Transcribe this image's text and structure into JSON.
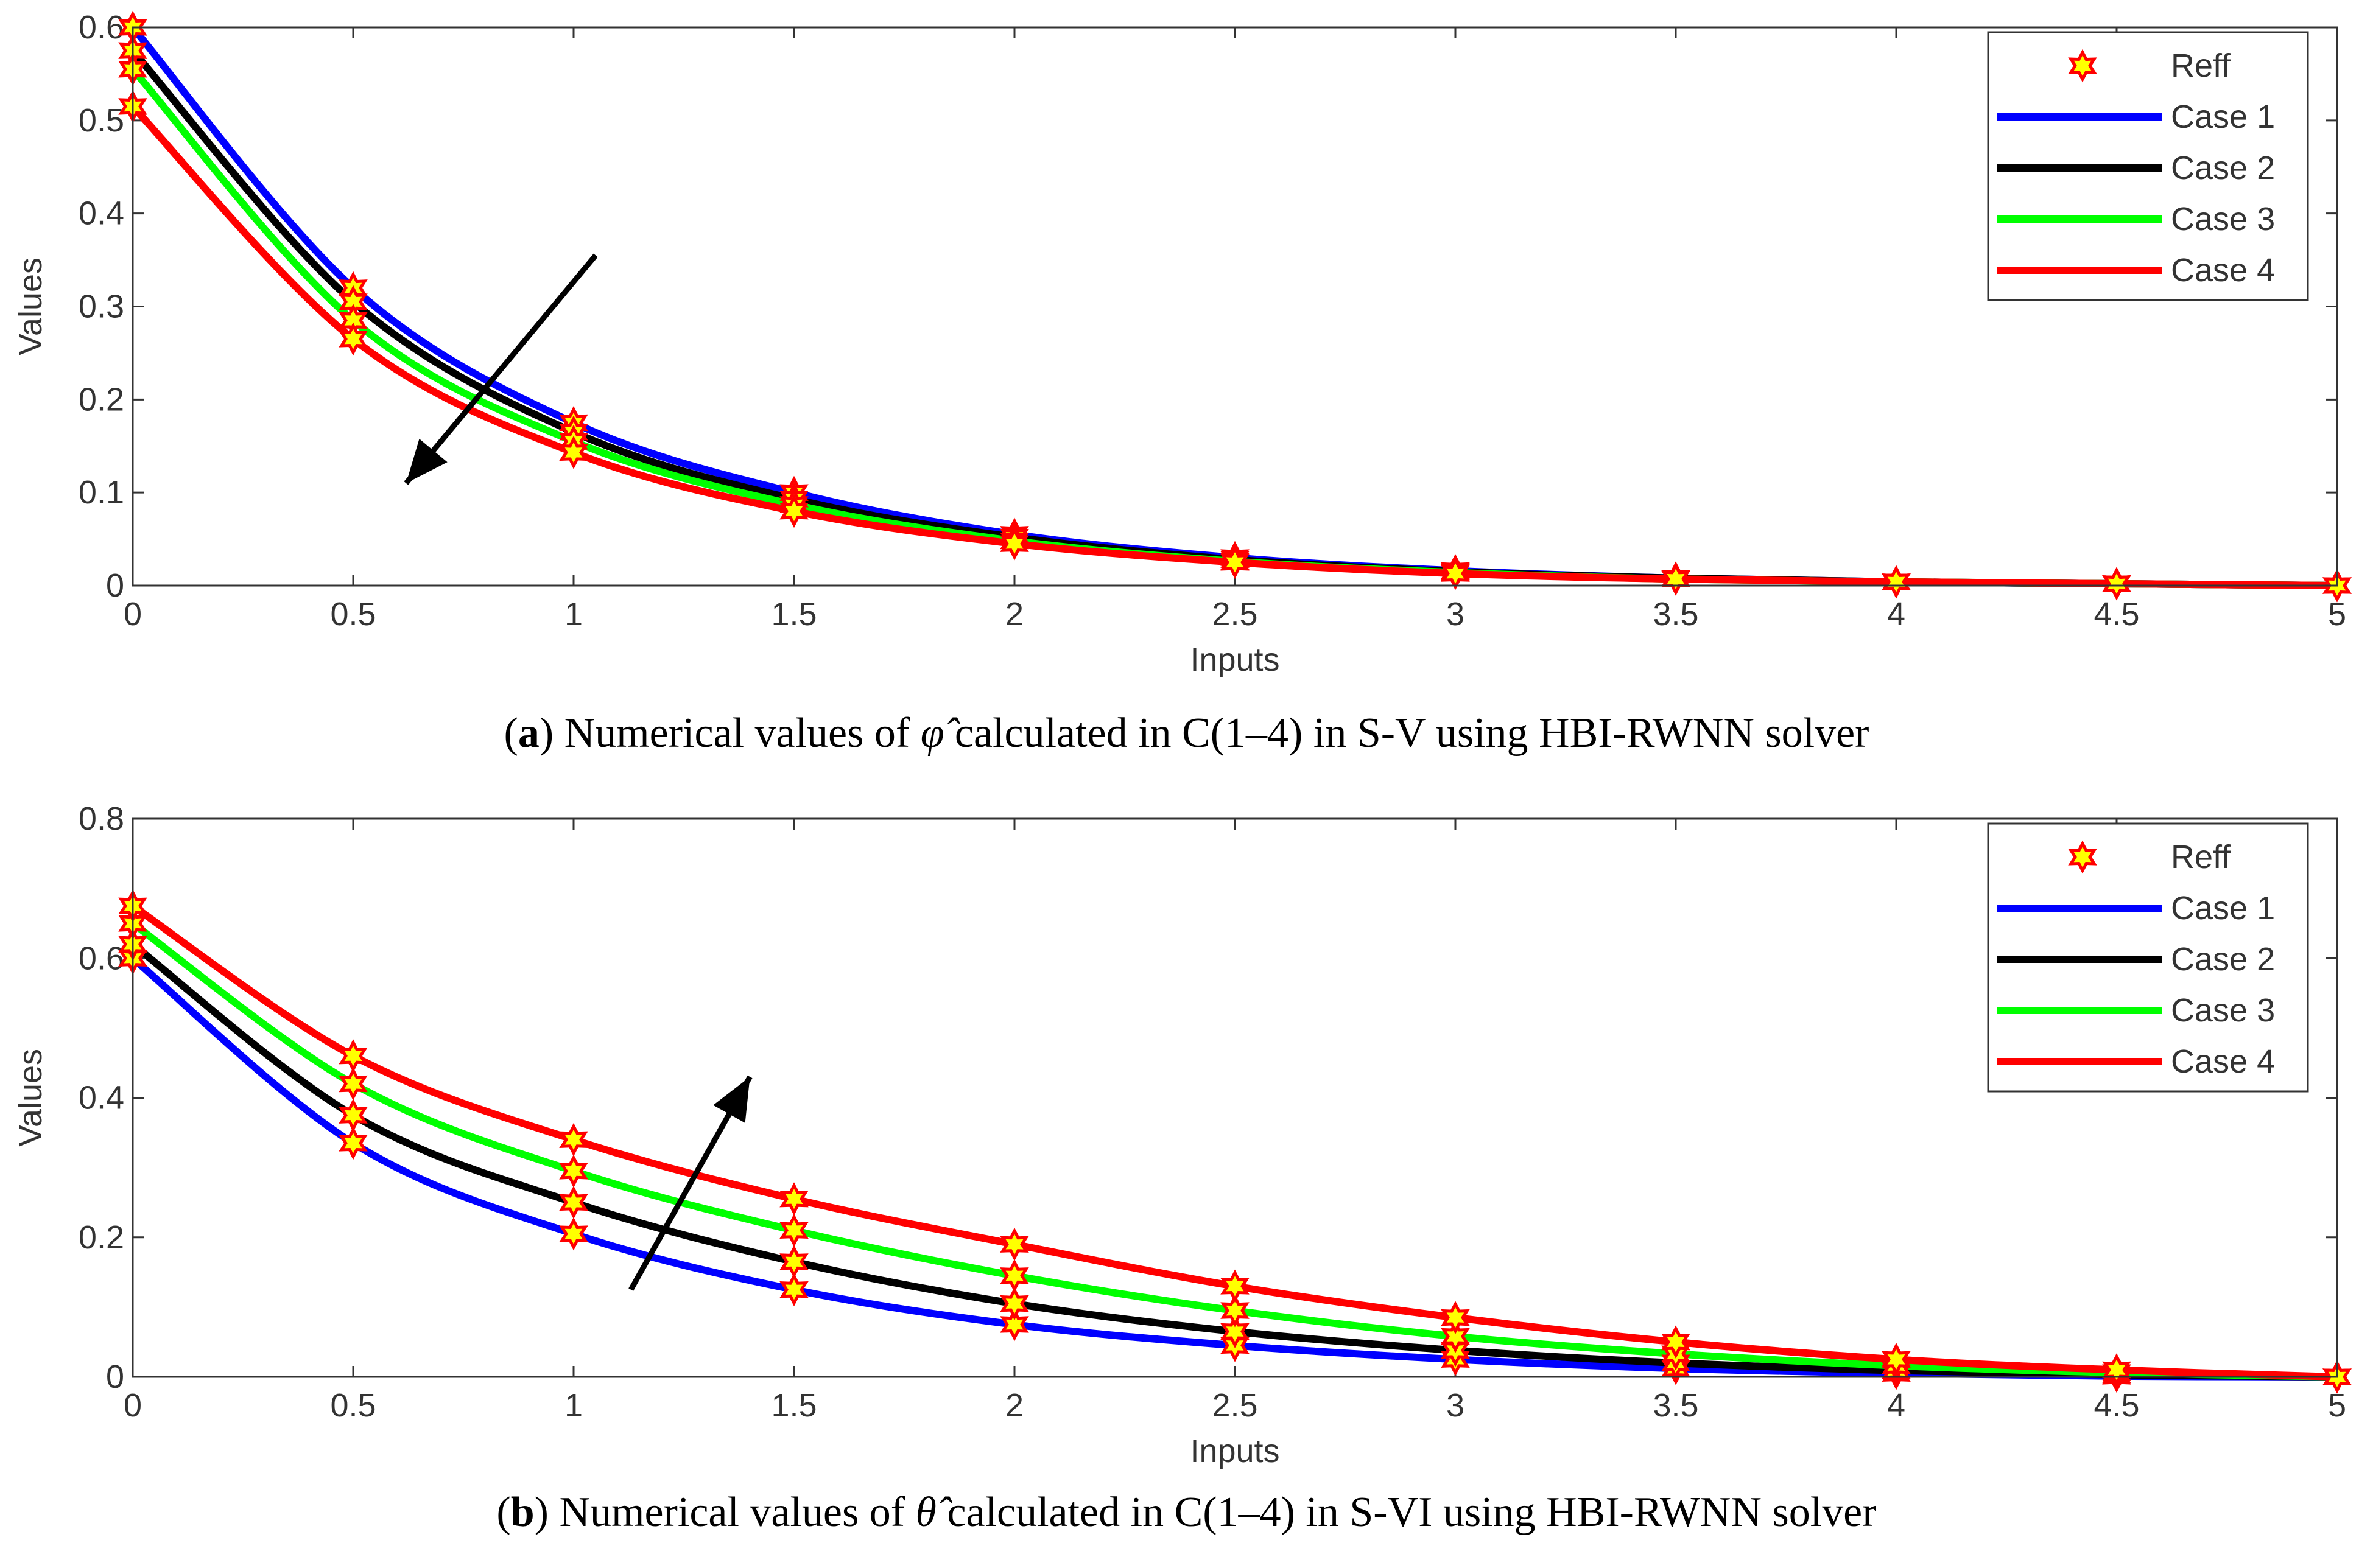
{
  "chart_data": [
    {
      "type": "line",
      "panel_letter": "a",
      "caption_pre": "Numerical values of ",
      "caption_symbol": "φ̂",
      "caption_post": " calculated in C(1–4) in S-V using HBI-RWNN solver",
      "xlabel": "Inputs",
      "ylabel": "Values",
      "xlim": [
        0,
        5
      ],
      "ylim": [
        0,
        0.6
      ],
      "xticks": [
        "0",
        "0.5",
        "1",
        "1.5",
        "2",
        "2.5",
        "3",
        "3.5",
        "4",
        "4.5",
        "5"
      ],
      "yticks": [
        "0",
        "0.1",
        "0.2",
        "0.3",
        "0.4",
        "0.5",
        "0.6"
      ],
      "x": [
        0,
        0.5,
        1,
        1.5,
        2,
        2.5,
        3,
        3.5,
        4,
        4.5,
        5
      ],
      "series": [
        {
          "name": "Case 1",
          "color": "#0000ff",
          "values": [
            0.6,
            0.32,
            0.175,
            0.1,
            0.055,
            0.03,
            0.016,
            0.008,
            0.004,
            0.002,
            0.0
          ]
        },
        {
          "name": "Case 2",
          "color": "#000000",
          "values": [
            0.575,
            0.305,
            0.165,
            0.093,
            0.052,
            0.028,
            0.015,
            0.008,
            0.004,
            0.002,
            0.0
          ]
        },
        {
          "name": "Case 3",
          "color": "#00ff00",
          "values": [
            0.555,
            0.285,
            0.155,
            0.087,
            0.048,
            0.026,
            0.014,
            0.007,
            0.004,
            0.002,
            0.0
          ]
        },
        {
          "name": "Case 4",
          "color": "#ff0000",
          "values": [
            0.515,
            0.265,
            0.143,
            0.08,
            0.045,
            0.025,
            0.013,
            0.007,
            0.004,
            0.002,
            0.0
          ]
        }
      ],
      "reference": {
        "name": "Reff",
        "marker_color": "#ffff00",
        "edge_color": "#ff0000"
      },
      "legend_position": "top-right",
      "arrow": {
        "from": [
          1.05,
          0.355
        ],
        "to": [
          0.62,
          0.11
        ]
      }
    },
    {
      "type": "line",
      "panel_letter": "b",
      "caption_pre": "Numerical values of ",
      "caption_symbol": "θ̂",
      "caption_post": " calculated in C(1–4) in S-VI using HBI-RWNN solver",
      "xlabel": "Inputs",
      "ylabel": "Values",
      "xlim": [
        0,
        5
      ],
      "ylim": [
        0,
        0.8
      ],
      "xticks": [
        "0",
        "0.5",
        "1",
        "1.5",
        "2",
        "2.5",
        "3",
        "3.5",
        "4",
        "4.5",
        "5"
      ],
      "yticks": [
        "0",
        "0.2",
        "0.4",
        "0.6",
        "0.8"
      ],
      "x": [
        0,
        0.5,
        1,
        1.5,
        2,
        2.5,
        3,
        3.5,
        4,
        4.5,
        5
      ],
      "series": [
        {
          "name": "Case 1",
          "color": "#0000ff",
          "values": [
            0.6,
            0.335,
            0.205,
            0.125,
            0.075,
            0.045,
            0.025,
            0.012,
            0.005,
            0.001,
            0.0
          ]
        },
        {
          "name": "Case 2",
          "color": "#000000",
          "values": [
            0.62,
            0.375,
            0.25,
            0.165,
            0.105,
            0.065,
            0.038,
            0.02,
            0.009,
            0.003,
            0.0
          ]
        },
        {
          "name": "Case 3",
          "color": "#00ff00",
          "values": [
            0.65,
            0.42,
            0.295,
            0.21,
            0.145,
            0.095,
            0.058,
            0.033,
            0.016,
            0.006,
            0.0
          ]
        },
        {
          "name": "Case 4",
          "color": "#ff0000",
          "values": [
            0.675,
            0.46,
            0.34,
            0.255,
            0.19,
            0.13,
            0.085,
            0.05,
            0.025,
            0.01,
            0.0
          ]
        }
      ],
      "reference": {
        "name": "Reff",
        "marker_color": "#ffff00",
        "edge_color": "#ff0000"
      },
      "legend_position": "top-right",
      "arrow": {
        "from": [
          1.13,
          0.125
        ],
        "to": [
          1.4,
          0.43
        ]
      }
    }
  ]
}
